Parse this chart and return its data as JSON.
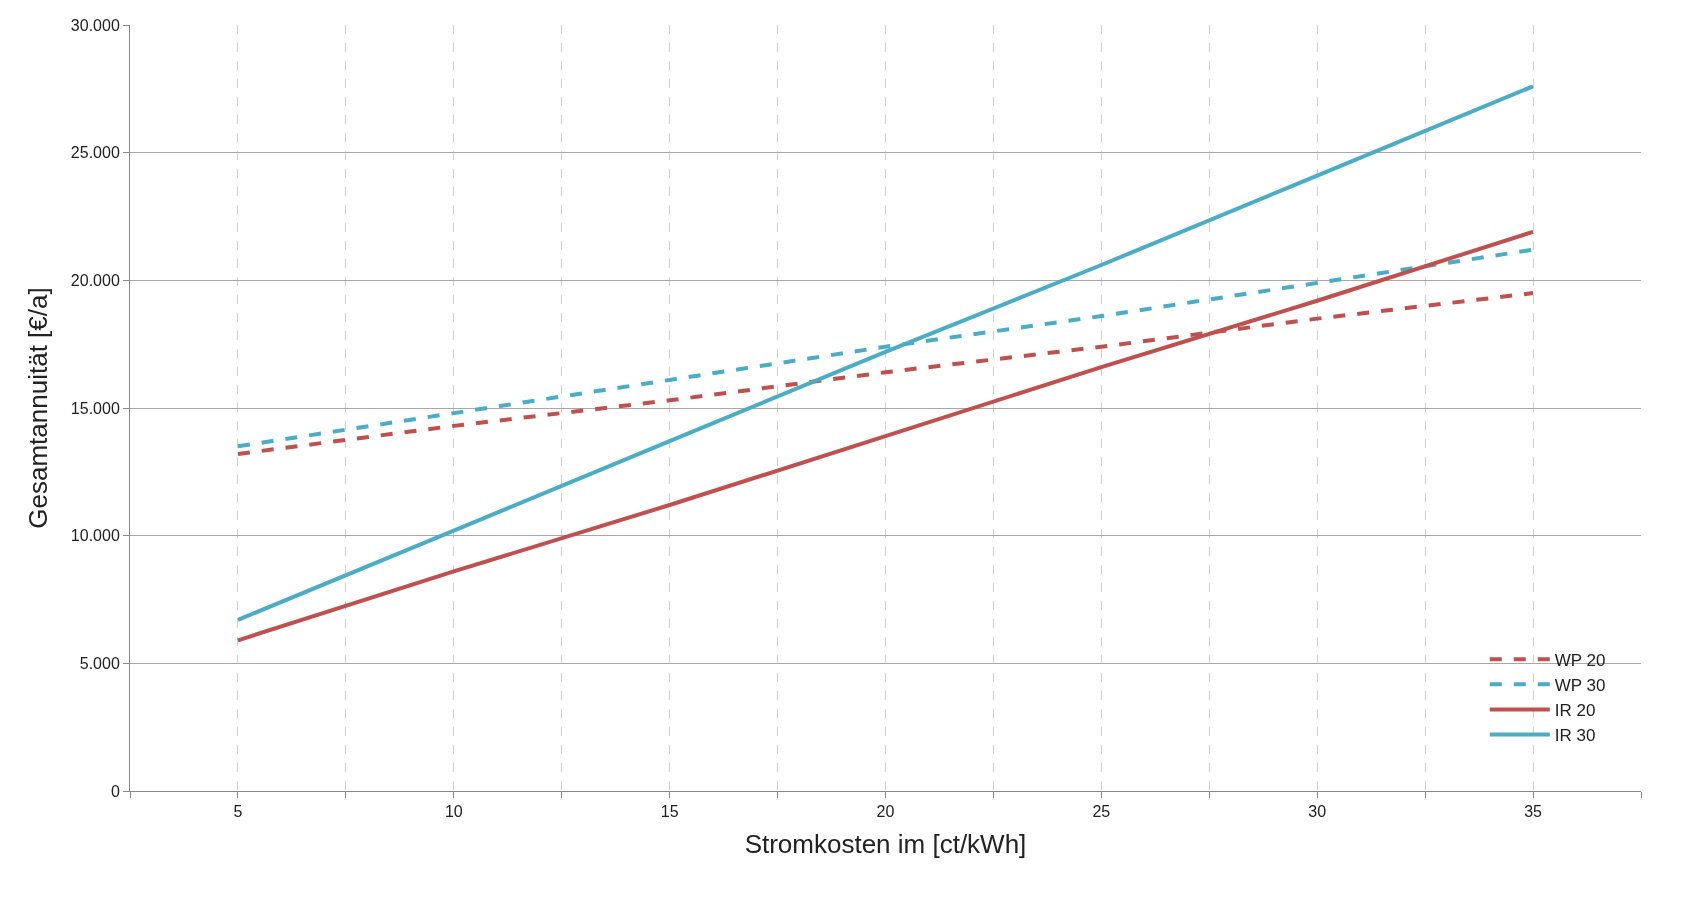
{
  "chart_data": {
    "type": "line",
    "xlabel": "Stromkosten im [ct/kWh]",
    "ylabel": "Gesamtannuität [€/a]",
    "x": [
      5,
      10,
      15,
      20,
      25,
      30,
      35
    ],
    "series": [
      {
        "name": "WP 20",
        "color": "#c0504d",
        "line_style": "dashed",
        "values": [
          13200,
          14300,
          15300,
          16400,
          17400,
          18500,
          19500
        ]
      },
      {
        "name": "WP 30",
        "color": "#4bacc6",
        "line_style": "dashed",
        "values": [
          13500,
          14800,
          16100,
          17400,
          18600,
          19900,
          21200
        ]
      },
      {
        "name": "IR 20",
        "color": "#c0504d",
        "line_style": "solid",
        "values": [
          5900,
          8600,
          11200,
          13900,
          16600,
          19200,
          21900
        ]
      },
      {
        "name": "IR 30",
        "color": "#4bacc6",
        "line_style": "solid",
        "values": [
          6700,
          10200,
          13700,
          17200,
          20600,
          24100,
          27600
        ]
      }
    ],
    "xlim": [
      2.5,
      37.5
    ],
    "xticks": [
      {
        "value": 2.5,
        "label": null
      },
      {
        "value": 5,
        "label": "5"
      },
      {
        "value": 7.5,
        "label": null
      },
      {
        "value": 10,
        "label": "10"
      },
      {
        "value": 12.5,
        "label": null
      },
      {
        "value": 15,
        "label": "15"
      },
      {
        "value": 17.5,
        "label": null
      },
      {
        "value": 20,
        "label": "20"
      },
      {
        "value": 22.5,
        "label": null
      },
      {
        "value": 25,
        "label": "25"
      },
      {
        "value": 27.5,
        "label": null
      },
      {
        "value": 30,
        "label": "30"
      },
      {
        "value": 32.5,
        "label": null
      },
      {
        "value": 35,
        "label": "35"
      },
      {
        "value": 37.5,
        "label": null
      }
    ],
    "ylim": [
      0,
      30000
    ],
    "yticks": [
      0,
      {
        "value": 5000,
        "label": "5.000"
      },
      {
        "value": 10000,
        "label": "10.000"
      },
      {
        "value": 15000,
        "label": "15.000"
      },
      {
        "value": 20000,
        "label": "20.000"
      },
      {
        "value": 25000,
        "label": "25.000"
      },
      {
        "value": 30000,
        "label": "30.000"
      }
    ],
    "grid": true,
    "legend": "bottom right",
    "marker": "none"
  }
}
